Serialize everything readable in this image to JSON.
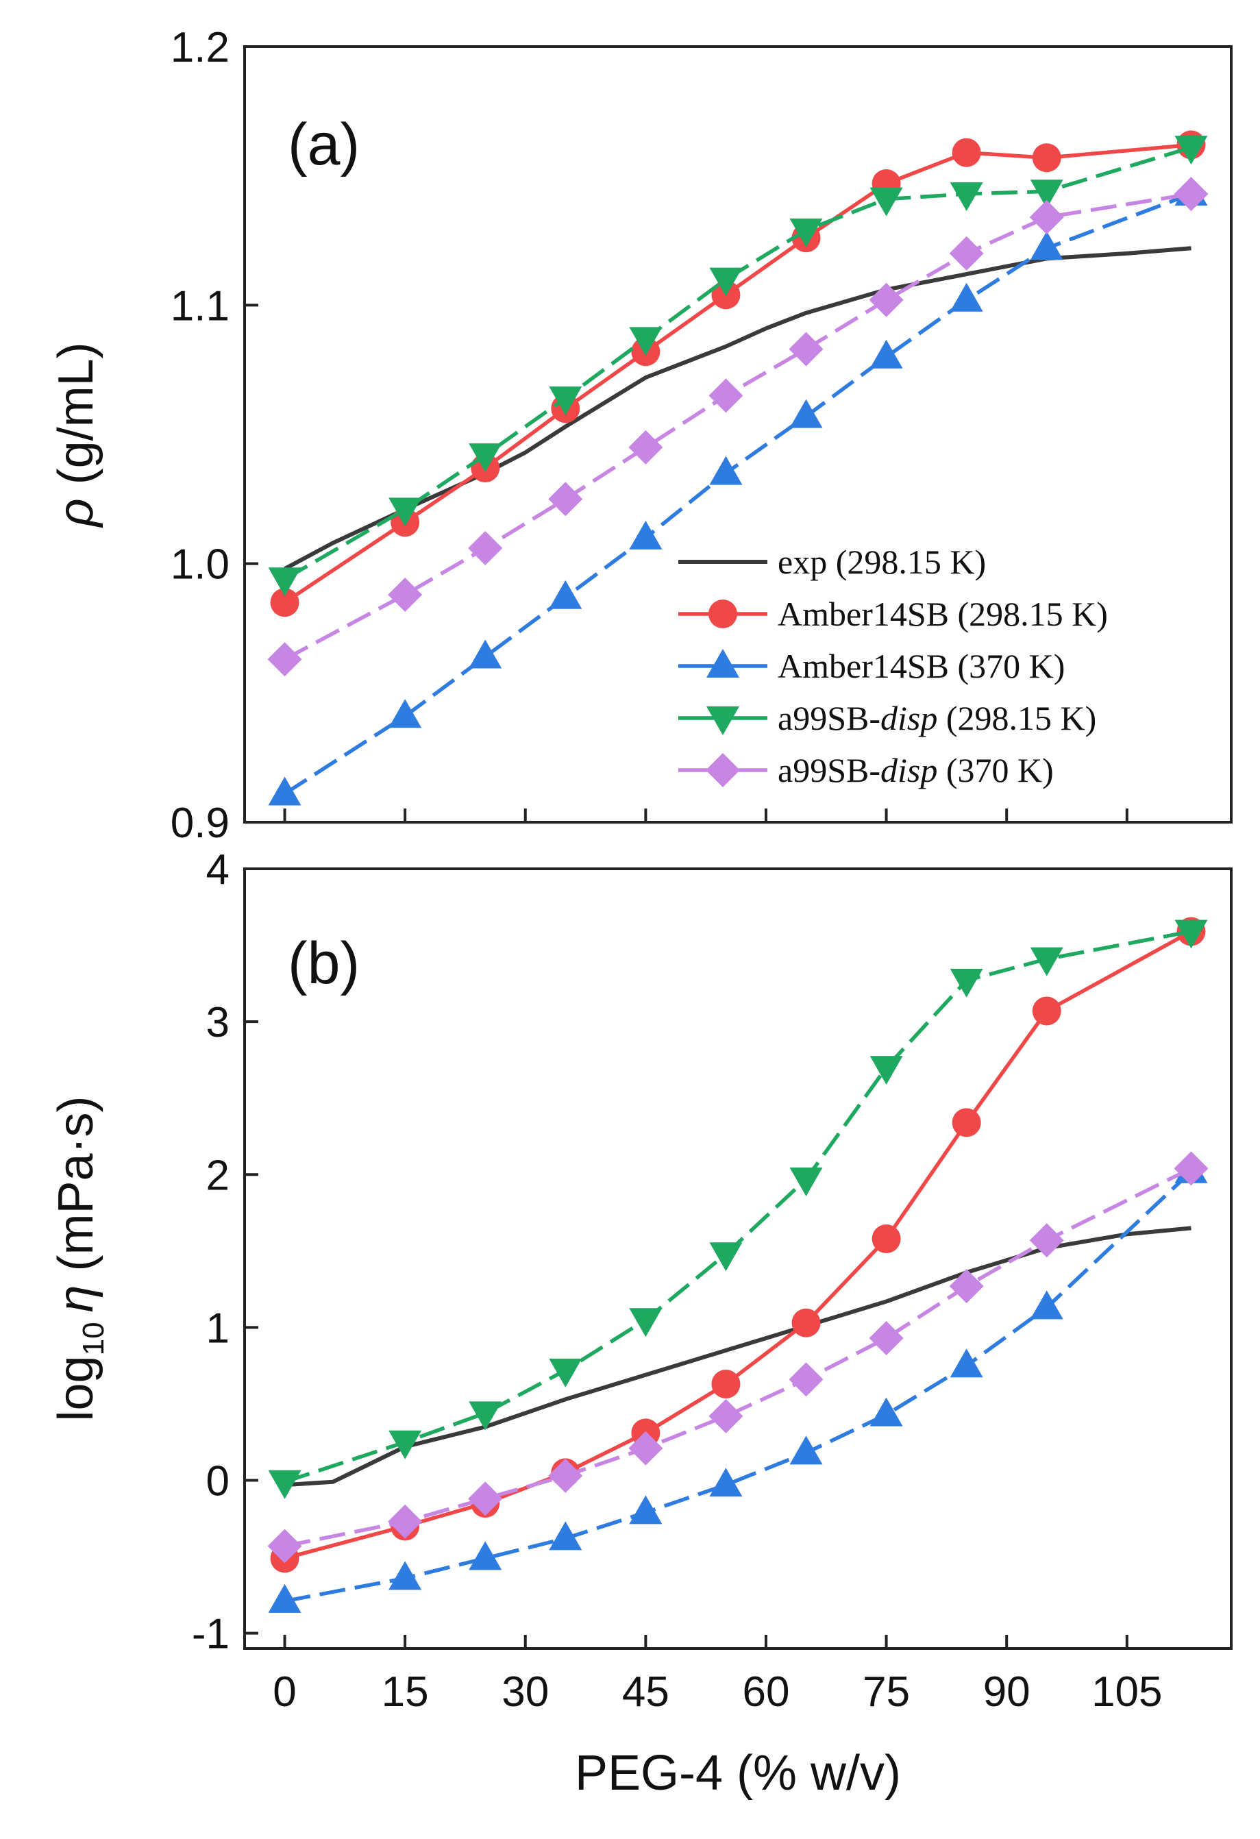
{
  "figure": {
    "xlabel": "PEG-4 (% w/v)",
    "x_ticks": [
      "0",
      "15",
      "30",
      "45",
      "60",
      "75",
      "90",
      "105"
    ]
  },
  "chart_data": [
    {
      "type": "line",
      "panel": "(a)",
      "ylabel_symbol": "ρ",
      "ylabel_unit": " (g/mL)",
      "xlim": [
        -5,
        118
      ],
      "ylim": [
        0.9,
        1.2
      ],
      "x_tick_values": [
        0,
        15,
        30,
        45,
        60,
        75,
        90,
        105
      ],
      "y_tick_values": [
        0.9,
        1.0,
        1.1,
        1.2
      ],
      "y_tick_labels": [
        "0.9",
        "1.0",
        "1.1",
        "1.2"
      ],
      "legend_position": "lower-right",
      "series": [
        {
          "key": "exp_298",
          "name": "exp (298.15 K)",
          "color": "#3a3a3a",
          "marker": "none",
          "x": [
            0,
            6,
            15,
            25,
            30,
            35,
            45,
            55,
            60,
            65,
            75,
            85,
            90,
            95,
            105,
            113
          ],
          "values": [
            0.998,
            1.008,
            1.021,
            1.035,
            1.043,
            1.053,
            1.072,
            1.084,
            1.091,
            1.097,
            1.106,
            1.112,
            1.115,
            1.118,
            1.12,
            1.122
          ]
        },
        {
          "key": "amber_298",
          "name": "Amber14SB (298.15 K)",
          "color": "#f04848",
          "marker": "circle",
          "x": [
            0,
            15,
            25,
            35,
            45,
            55,
            65,
            75,
            85,
            95,
            113
          ],
          "values": [
            0.985,
            1.016,
            1.037,
            1.06,
            1.082,
            1.104,
            1.126,
            1.147,
            1.159,
            1.157,
            1.162
          ]
        },
        {
          "key": "amber_370",
          "name": "Amber14SB (370 K)",
          "color": "#2f7ce0",
          "marker": "triangle-up",
          "x": [
            0,
            15,
            25,
            35,
            45,
            55,
            65,
            75,
            85,
            95,
            113
          ],
          "values": [
            0.911,
            0.941,
            0.964,
            0.987,
            1.01,
            1.035,
            1.057,
            1.08,
            1.102,
            1.122,
            1.143
          ]
        },
        {
          "key": "disp_298",
          "name_main": "a99SB-",
          "name_italic": "disp",
          "name_suffix": " (298.15 K)",
          "color": "#1fa960",
          "marker": "triangle-down",
          "x": [
            0,
            15,
            25,
            35,
            45,
            55,
            65,
            75,
            85,
            95,
            113
          ],
          "values": [
            0.994,
            1.021,
            1.042,
            1.064,
            1.087,
            1.11,
            1.129,
            1.141,
            1.143,
            1.144,
            1.161
          ]
        },
        {
          "key": "disp_370",
          "name_main": "a99SB-",
          "name_italic": "disp",
          "name_suffix": " (370 K)",
          "color": "#c785e4",
          "marker": "diamond",
          "x": [
            0,
            15,
            25,
            35,
            45,
            55,
            65,
            75,
            85,
            95,
            113
          ],
          "values": [
            0.963,
            0.988,
            1.006,
            1.025,
            1.045,
            1.065,
            1.083,
            1.102,
            1.12,
            1.134,
            1.143
          ]
        }
      ]
    },
    {
      "type": "line",
      "panel": "(b)",
      "ylabel_prefix": "log",
      "ylabel_sub": "10",
      "ylabel_symbol": "η",
      "ylabel_unit": " (mPa·s)",
      "xlim": [
        -5,
        118
      ],
      "ylim": [
        -1.1,
        4.0
      ],
      "x_tick_values": [
        0,
        15,
        30,
        45,
        60,
        75,
        90,
        105
      ],
      "y_tick_values": [
        -1,
        0,
        1,
        2,
        3,
        4
      ],
      "y_tick_labels": [
        "-1",
        "0",
        "1",
        "2",
        "3",
        "4"
      ],
      "series": [
        {
          "key": "exp_298",
          "color": "#3a3a3a",
          "marker": "none",
          "x": [
            0,
            6,
            15,
            25,
            35,
            45,
            55,
            65,
            75,
            85,
            95,
            105,
            113
          ],
          "values": [
            -0.03,
            -0.01,
            0.22,
            0.35,
            0.53,
            0.69,
            0.85,
            1.01,
            1.17,
            1.36,
            1.52,
            1.61,
            1.65
          ]
        },
        {
          "key": "amber_298",
          "color": "#f04848",
          "marker": "circle",
          "x": [
            0,
            15,
            25,
            35,
            45,
            55,
            65,
            75,
            85,
            95,
            113
          ],
          "values": [
            -0.51,
            -0.3,
            -0.15,
            0.05,
            0.31,
            0.63,
            1.03,
            1.58,
            2.34,
            3.07,
            3.59
          ]
        },
        {
          "key": "amber_370",
          "color": "#2f7ce0",
          "marker": "triangle-up",
          "x": [
            0,
            15,
            25,
            35,
            45,
            55,
            65,
            75,
            85,
            95,
            113
          ],
          "values": [
            -0.79,
            -0.64,
            -0.51,
            -0.38,
            -0.21,
            -0.03,
            0.18,
            0.43,
            0.75,
            1.13,
            2.02
          ]
        },
        {
          "key": "disp_298",
          "color": "#1fa960",
          "marker": "triangle-down",
          "x": [
            0,
            15,
            25,
            35,
            45,
            55,
            65,
            75,
            85,
            95,
            113
          ],
          "values": [
            -0.01,
            0.25,
            0.44,
            0.72,
            1.05,
            1.48,
            1.97,
            2.7,
            3.27,
            3.41,
            3.59
          ]
        },
        {
          "key": "disp_370",
          "color": "#c785e4",
          "marker": "diamond",
          "x": [
            0,
            15,
            25,
            35,
            45,
            55,
            65,
            75,
            85,
            95,
            113
          ],
          "values": [
            -0.43,
            -0.27,
            -0.12,
            0.03,
            0.21,
            0.42,
            0.66,
            0.93,
            1.27,
            1.57,
            2.04
          ]
        }
      ]
    }
  ]
}
